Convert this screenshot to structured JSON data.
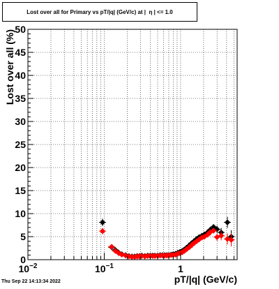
{
  "title": "Lost over all for Primary vs pT/|q| (GeV/c) at |  η | <= 1.0",
  "date_stamp": "Thu Sep 22 14:13:34 2022",
  "colors": {
    "series_black": "#000000",
    "series_red": "#ff0000",
    "grid": "#000000",
    "frame": "#000000"
  },
  "chart_data": {
    "type": "scatter",
    "title": "Lost over all for Primary vs pT/|q| (GeV/c) at |  η | <= 1.0",
    "xlabel": "pT/|q| (GeV/c)",
    "ylabel": "Lost over all (%)",
    "xscale": "log",
    "xlim": [
      0.01,
      5.5
    ],
    "ylim": [
      0,
      50
    ],
    "grid": true,
    "x_tick_labels": [
      {
        "value": 0.01,
        "base": "10",
        "exp": "−2"
      },
      {
        "value": 0.1,
        "base": "10",
        "exp": "−1"
      },
      {
        "value": 1,
        "base": "1",
        "exp": ""
      }
    ],
    "y_tick_labels": [
      "0",
      "5",
      "10",
      "15",
      "20",
      "25",
      "30",
      "35",
      "40",
      "45",
      "50"
    ],
    "y_ticks": [
      0,
      5,
      10,
      15,
      20,
      25,
      30,
      35,
      40,
      45,
      50
    ],
    "series": [
      {
        "color": "#000000",
        "points": [
          {
            "x": 0.095,
            "y": 8.1,
            "ey": 0.8
          },
          {
            "x": 0.125,
            "y": 2.7,
            "ey": 0.4
          },
          {
            "x": 0.14,
            "y": 2.1,
            "ey": 0.3
          },
          {
            "x": 0.155,
            "y": 1.5
          },
          {
            "x": 0.17,
            "y": 1.2
          },
          {
            "x": 0.19,
            "y": 1.0
          },
          {
            "x": 0.21,
            "y": 0.8
          },
          {
            "x": 0.23,
            "y": 0.7
          },
          {
            "x": 0.25,
            "y": 0.7
          },
          {
            "x": 0.27,
            "y": 0.8
          },
          {
            "x": 0.29,
            "y": 0.8
          },
          {
            "x": 0.31,
            "y": 0.9
          },
          {
            "x": 0.34,
            "y": 0.8
          },
          {
            "x": 0.37,
            "y": 0.9
          },
          {
            "x": 0.4,
            "y": 0.9
          },
          {
            "x": 0.43,
            "y": 0.9
          },
          {
            "x": 0.46,
            "y": 0.9
          },
          {
            "x": 0.5,
            "y": 0.9
          },
          {
            "x": 0.54,
            "y": 1.0
          },
          {
            "x": 0.58,
            "y": 1.0
          },
          {
            "x": 0.62,
            "y": 1.0
          },
          {
            "x": 0.66,
            "y": 1.0
          },
          {
            "x": 0.7,
            "y": 1.0
          },
          {
            "x": 0.75,
            "y": 1.1
          },
          {
            "x": 0.8,
            "y": 1.2
          },
          {
            "x": 0.86,
            "y": 1.3
          },
          {
            "x": 0.92,
            "y": 1.5
          },
          {
            "x": 0.98,
            "y": 1.7
          },
          {
            "x": 1.05,
            "y": 1.9
          },
          {
            "x": 1.12,
            "y": 2.2
          },
          {
            "x": 1.2,
            "y": 2.6
          },
          {
            "x": 1.3,
            "y": 3.1
          },
          {
            "x": 1.4,
            "y": 3.6
          },
          {
            "x": 1.5,
            "y": 4.0
          },
          {
            "x": 1.62,
            "y": 4.5
          },
          {
            "x": 1.75,
            "y": 4.9
          },
          {
            "x": 1.9,
            "y": 5.2
          },
          {
            "x": 2.05,
            "y": 5.5
          },
          {
            "x": 2.25,
            "y": 5.9
          },
          {
            "x": 2.45,
            "y": 6.5
          },
          {
            "x": 2.7,
            "y": 7.1,
            "ey": 0.6
          },
          {
            "x": 3.0,
            "y": 6.6,
            "ey": 0.8
          },
          {
            "x": 3.4,
            "y": 5.9,
            "ey": 1.0
          },
          {
            "x": 4.1,
            "y": 8.1,
            "ey": 1.2
          },
          {
            "x": 4.6,
            "y": 5.0,
            "ey": 1.4
          }
        ]
      },
      {
        "color": "#ff0000",
        "points": [
          {
            "x": 0.095,
            "y": 6.2,
            "ey": 0.7
          },
          {
            "x": 0.125,
            "y": 2.8,
            "ey": 0.4
          },
          {
            "x": 0.14,
            "y": 1.9,
            "ey": 0.3
          },
          {
            "x": 0.155,
            "y": 1.4
          },
          {
            "x": 0.17,
            "y": 1.1
          },
          {
            "x": 0.19,
            "y": 0.9
          },
          {
            "x": 0.21,
            "y": 0.7
          },
          {
            "x": 0.23,
            "y": 0.6
          },
          {
            "x": 0.25,
            "y": 0.6
          },
          {
            "x": 0.27,
            "y": 0.7
          },
          {
            "x": 0.29,
            "y": 0.7
          },
          {
            "x": 0.31,
            "y": 0.8
          },
          {
            "x": 0.34,
            "y": 0.7
          },
          {
            "x": 0.37,
            "y": 0.8
          },
          {
            "x": 0.4,
            "y": 0.8
          },
          {
            "x": 0.43,
            "y": 0.8
          },
          {
            "x": 0.46,
            "y": 0.8
          },
          {
            "x": 0.5,
            "y": 0.8
          },
          {
            "x": 0.54,
            "y": 0.9
          },
          {
            "x": 0.58,
            "y": 0.9
          },
          {
            "x": 0.62,
            "y": 0.9
          },
          {
            "x": 0.66,
            "y": 0.9
          },
          {
            "x": 0.7,
            "y": 0.9
          },
          {
            "x": 0.75,
            "y": 1.0
          },
          {
            "x": 0.8,
            "y": 1.0
          },
          {
            "x": 0.86,
            "y": 1.1
          },
          {
            "x": 0.92,
            "y": 1.3
          },
          {
            "x": 0.98,
            "y": 1.4
          },
          {
            "x": 1.05,
            "y": 1.6
          },
          {
            "x": 1.12,
            "y": 1.9
          },
          {
            "x": 1.2,
            "y": 2.3
          },
          {
            "x": 1.3,
            "y": 2.7
          },
          {
            "x": 1.4,
            "y": 3.2
          },
          {
            "x": 1.5,
            "y": 3.6
          },
          {
            "x": 1.62,
            "y": 4.0
          },
          {
            "x": 1.75,
            "y": 4.4
          },
          {
            "x": 1.9,
            "y": 4.8
          },
          {
            "x": 2.05,
            "y": 5.0
          },
          {
            "x": 2.25,
            "y": 5.4
          },
          {
            "x": 2.45,
            "y": 6.0
          },
          {
            "x": 2.7,
            "y": 6.3,
            "ey": 0.6
          },
          {
            "x": 3.0,
            "y": 4.9,
            "ey": 0.8
          },
          {
            "x": 3.4,
            "y": 5.2,
            "ey": 1.0
          },
          {
            "x": 4.1,
            "y": 4.5,
            "ey": 1.2
          },
          {
            "x": 4.6,
            "y": 4.3,
            "ey": 1.4
          }
        ]
      }
    ]
  }
}
